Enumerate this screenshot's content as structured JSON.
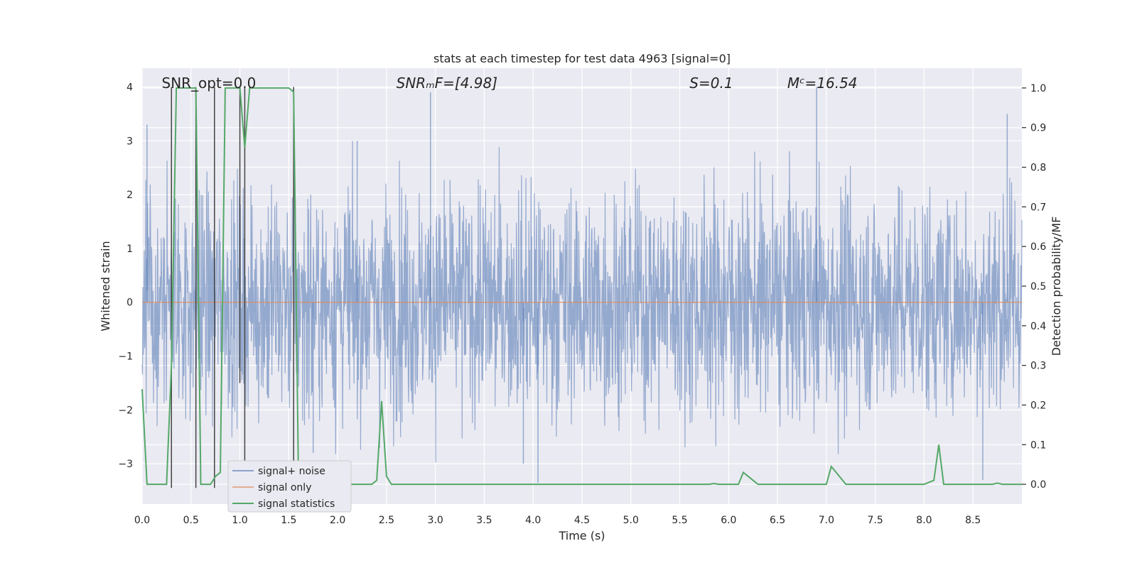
{
  "chart_data": {
    "type": "line",
    "title": "stats at each timestep for test data 4963 [signal=0]",
    "xlabel": "Time (s)",
    "ylabel": "Whitened strain",
    "y2label": "Detection probability/MF",
    "xlim": [
      0.0,
      9.0
    ],
    "ylim": [
      -3.75,
      4.35
    ],
    "y2lim": [
      -0.05,
      1.05
    ],
    "x_ticks": [
      "0.0",
      "0.5",
      "1.0",
      "1.5",
      "2.0",
      "2.5",
      "3.0",
      "3.5",
      "4.0",
      "4.5",
      "5.0",
      "5.5",
      "6.0",
      "6.5",
      "7.0",
      "7.5",
      "8.0",
      "8.5"
    ],
    "y_ticks": [
      "−3",
      "−2",
      "−1",
      "0",
      "1",
      "2",
      "3",
      "4"
    ],
    "y2_ticks": [
      "0.0",
      "0.1",
      "0.2",
      "0.3",
      "0.4",
      "0.5",
      "0.6",
      "0.7",
      "0.8",
      "0.9",
      "1.0"
    ],
    "grid": true,
    "annotations": [
      {
        "text": "SNR_opt=0.0",
        "x": 0.2
      },
      {
        "text": "SNRₘF=[4.98]",
        "x": 2.6
      },
      {
        "text": "S=0.1",
        "x": 5.6
      },
      {
        "text": "Mᶜ=16.54",
        "x": 6.6
      }
    ],
    "legend": {
      "placement": "lower-left",
      "entries": [
        "signal+ noise",
        "signal only",
        "signal statistics"
      ]
    },
    "series": [
      {
        "name": "signal+ noise",
        "color": "#4c72b0",
        "description_amplitude": 1.75,
        "peaks": [
          [
            0.05,
            3.3
          ],
          [
            0.55,
            3.15
          ],
          [
            2.2,
            3.0
          ],
          [
            2.95,
            3.9
          ],
          [
            6.9,
            4.0
          ],
          [
            8.85,
            3.5
          ],
          [
            4.05,
            -3.35
          ],
          [
            3.9,
            -3.0
          ],
          [
            1.75,
            -2.8
          ],
          [
            8.6,
            -3.3
          ]
        ]
      },
      {
        "name": "signal only",
        "color": "#dd8452",
        "values_const": 0.0
      },
      {
        "name": "signal statistics",
        "color": "#55a868",
        "x": [
          0.0,
          0.05,
          0.1,
          0.25,
          0.3,
          0.35,
          0.4,
          0.45,
          0.5,
          0.55,
          0.6,
          0.65,
          0.7,
          0.75,
          0.8,
          0.85,
          0.9,
          0.95,
          1.0,
          1.05,
          1.1,
          1.15,
          1.2,
          1.3,
          1.4,
          1.5,
          1.55,
          1.6,
          1.65,
          1.7,
          2.2,
          2.35,
          2.4,
          2.45,
          2.5,
          2.55,
          2.6,
          3.0,
          4.0,
          5.0,
          5.8,
          5.85,
          5.9,
          6.0,
          6.1,
          6.15,
          6.2,
          6.3,
          6.4,
          6.9,
          7.0,
          7.05,
          7.1,
          7.2,
          7.3,
          8.0,
          8.1,
          8.15,
          8.2,
          8.25,
          8.3,
          8.5,
          8.7,
          8.75,
          8.8,
          8.9,
          9.0
        ],
        "y": [
          0.24,
          0.0,
          0.0,
          0.0,
          0.3,
          1.0,
          1.0,
          1.0,
          1.0,
          1.0,
          0.0,
          0.0,
          0.0,
          0.02,
          0.03,
          1.0,
          1.0,
          1.0,
          1.0,
          0.85,
          1.0,
          1.0,
          1.0,
          1.0,
          1.0,
          1.0,
          0.99,
          0.0,
          0.0,
          0.0,
          0.0,
          0.0,
          0.01,
          0.21,
          0.02,
          0.0,
          0.0,
          0.0,
          0.0,
          0.0,
          0.0,
          0.002,
          0.0,
          0.0,
          0.0,
          0.03,
          0.02,
          0.0,
          0.0,
          0.0,
          0.0,
          0.045,
          0.03,
          0.0,
          0.0,
          0.0,
          0.01,
          0.1,
          0.0,
          0.0,
          0.0,
          0.0,
          0.0,
          0.003,
          0.0,
          0.0,
          0.0
        ]
      }
    ],
    "vertical_lines": [
      {
        "x": 0.3,
        "y_range": [
          -3.45,
          4.0
        ]
      },
      {
        "x": 0.55,
        "y_range": [
          -3.45,
          4.0
        ]
      },
      {
        "x": 0.74,
        "y_range": [
          -3.45,
          4.0
        ]
      },
      {
        "x": 1.0,
        "y_range": [
          -1.5,
          4.0
        ]
      },
      {
        "x": 1.05,
        "y_range": [
          -3.45,
          4.0
        ]
      },
      {
        "x": 1.55,
        "y_range": [
          -3.45,
          4.0
        ]
      }
    ]
  }
}
